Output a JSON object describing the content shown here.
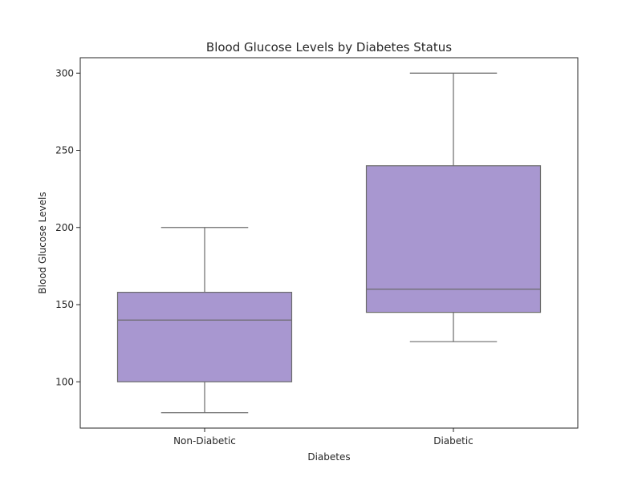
{
  "chart_data": {
    "type": "box",
    "title": "Blood Glucose Levels by Diabetes Status",
    "xlabel": "Diabetes",
    "ylabel": "Blood Glucose Levels",
    "ylim": [
      70,
      310
    ],
    "yticks": [
      100,
      150,
      200,
      250,
      300
    ],
    "grid": false,
    "box_color": "#a897d0",
    "line_color": "#6b6b6b",
    "categories": [
      "Non-Diabetic",
      "Diabetic"
    ],
    "boxes": [
      {
        "category": "Non-Diabetic",
        "whisker_low": 80,
        "q1": 100,
        "median": 140,
        "q3": 158,
        "whisker_high": 200
      },
      {
        "category": "Diabetic",
        "whisker_low": 126,
        "q1": 145,
        "median": 160,
        "q3": 240,
        "whisker_high": 300
      }
    ]
  }
}
